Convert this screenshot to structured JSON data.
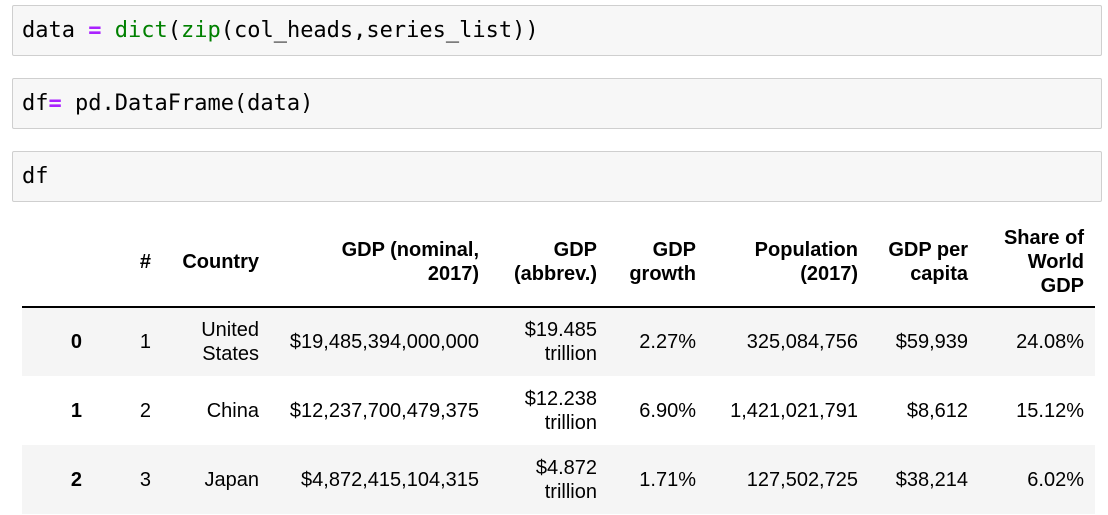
{
  "cells": [
    {
      "input": {
        "t1": "data ",
        "op": "=",
        "t2": " ",
        "fn1": "dict",
        "t3": "(",
        "fn2": "zip",
        "t4": "(col_heads,series_list))"
      }
    },
    {
      "input": {
        "t1": "df",
        "op": "=",
        "t2": " pd.DataFrame(data)"
      }
    },
    {
      "input": {
        "t1": "df"
      }
    }
  ],
  "table": {
    "columns": [
      "",
      "#",
      "Country",
      "GDP (nominal,\n2017)",
      "GDP\n(abbrev.)",
      "GDP\ngrowth",
      "Population\n(2017)",
      "GDP per\ncapita",
      "Share of\nWorld\nGDP"
    ],
    "rows": [
      {
        "index": "0",
        "num": "1",
        "country": "United\nStates",
        "gdp_nominal": "$19,485,394,000,000",
        "gdp_abbrev": "$19.485\ntrillion",
        "gdp_growth": "2.27%",
        "population": "325,084,756",
        "gdp_per_capita": "$59,939",
        "share": "24.08%"
      },
      {
        "index": "1",
        "num": "2",
        "country": "China",
        "gdp_nominal": "$12,237,700,479,375",
        "gdp_abbrev": "$12.238\ntrillion",
        "gdp_growth": "6.90%",
        "population": "1,421,021,791",
        "gdp_per_capita": "$8,612",
        "share": "15.12%"
      },
      {
        "index": "2",
        "num": "3",
        "country": "Japan",
        "gdp_nominal": "$4,872,415,104,315",
        "gdp_abbrev": "$4.872\ntrillion",
        "gdp_growth": "1.71%",
        "population": "127,502,725",
        "gdp_per_capita": "$38,214",
        "share": "6.02%"
      }
    ]
  },
  "colors": {
    "cell_bg": "#f7f7f7",
    "operator": "#aa22ff",
    "builtin": "#008000",
    "row_stripe": "#f5f5f5"
  }
}
